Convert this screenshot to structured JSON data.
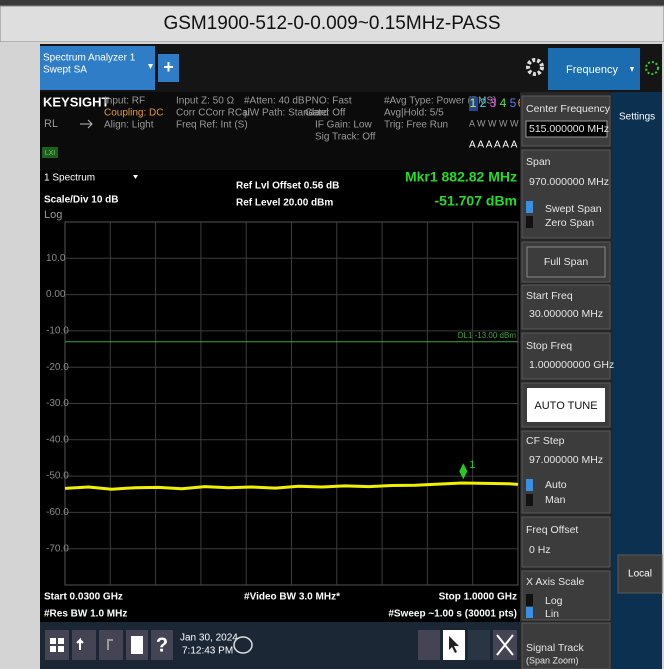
{
  "title": "GSM1900-512-0-0.009~0.15MHz-PASS",
  "window": {
    "tab_line1": "Spectrum Analyzer 1",
    "tab_line2": "Swept SA",
    "plus": "+",
    "menu_tab": "Frequency"
  },
  "info": {
    "brand": "KEYSIGHT",
    "rl": "RL",
    "lxi": "LXI",
    "input": "Input: RF",
    "coupling": "Coupling: DC",
    "align": "Align: Light",
    "input_z": "Input Z: 50 Ω",
    "corr": "Corr CCorr RCal",
    "freq_ref": "Freq Ref: Int (S)",
    "atten": "#Atten: 40 dB",
    "uw_path": "µW Path: Standard",
    "pno": "PNO: Fast",
    "gate": "Gate: Off",
    "if_gain": "IF Gain: Low",
    "sig_track": "Sig Track: Off",
    "avg_type": "#Avg Type: Power (RMS)",
    "avg_hold": "Avg|Hold: 5/5",
    "trig": "Trig: Free Run",
    "traces": [
      "1",
      "2",
      "3",
      "4",
      "5",
      "6"
    ],
    "trace_types": "A W W W W W",
    "detectors": "A A A A A A"
  },
  "spectrum": {
    "window": "1 Spectrum",
    "scale": "Scale/Div 10 dB",
    "scale_type": "Log",
    "ref_offset": "Ref Lvl Offset 0.56 dB",
    "ref_level": "Ref Level 20.00 dBm",
    "marker_freq": "Mkr1 882.82 MHz",
    "marker_level": "-51.707 dBm",
    "ylim": [
      -80,
      20
    ],
    "yticks": [
      {
        "value": 10,
        "label": "10.0"
      },
      {
        "value": 0,
        "label": "0.00"
      },
      {
        "value": -10,
        "label": "-10.0"
      },
      {
        "value": -20,
        "label": "-20.0"
      },
      {
        "value": -30,
        "label": "-30.0"
      },
      {
        "value": -40,
        "label": "-40.0"
      },
      {
        "value": -50,
        "label": "-50.0"
      },
      {
        "value": -60,
        "label": "-60.0"
      },
      {
        "value": -70,
        "label": "-70.0"
      }
    ],
    "xlim": [
      30,
      1000
    ],
    "display_line": {
      "value": -13,
      "label": "DL1 -13.00 dBm",
      "color": "#3aa83a"
    },
    "marker": {
      "x": 882.82,
      "y": -51.707,
      "label": "1",
      "color": "#22cc22"
    },
    "trace": {
      "color": "#f0f000",
      "x": [
        30,
        80,
        130,
        180,
        230,
        280,
        330,
        380,
        430,
        480,
        530,
        580,
        630,
        680,
        730,
        780,
        830,
        880,
        930,
        980,
        1000
      ],
      "values": [
        -53.4,
        -53.0,
        -53.6,
        -53.2,
        -53.1,
        -53.5,
        -52.9,
        -53.2,
        -53.0,
        -53.3,
        -52.8,
        -53.0,
        -52.7,
        -52.9,
        -52.6,
        -52.5,
        -52.2,
        -51.9,
        -52.0,
        -52.1,
        -52.3
      ]
    },
    "start": "Start 0.0300 GHz",
    "vbw": "#Video BW 3.0 MHz*",
    "stop": "Stop 1.0000 GHz",
    "rbw": "#Res BW 1.0 MHz",
    "sweep": "#Sweep ~1.00 s (30001 pts)"
  },
  "panel": {
    "center_freq": "Center Frequency",
    "center_freq_value": "515.000000 MHz",
    "span": "Span",
    "span_value": "970.000000 MHz",
    "swept_span": "Swept Span",
    "zero_span": "Zero Span",
    "full_span": "Full Span",
    "start_freq": "Start Freq",
    "start_freq_value": "30.000000 MHz",
    "stop_freq": "Stop Freq",
    "stop_freq_value": "1.000000000 GHz",
    "auto_tune": "AUTO TUNE",
    "cf_step": "CF Step",
    "cf_step_value": "97.000000 MHz",
    "auto": "Auto",
    "man": "Man",
    "freq_offset": "Freq Offset",
    "freq_offset_value": "0 Hz",
    "x_axis_scale": "X Axis Scale",
    "log": "Log",
    "lin": "Lin",
    "signal_track": "Signal Track",
    "span_zoom": "(Span Zoom)",
    "settings": "Settings",
    "local": "Local"
  },
  "taskbar": {
    "help": "?",
    "date": "Jan 30, 2024",
    "time": "7:12:43 PM"
  }
}
